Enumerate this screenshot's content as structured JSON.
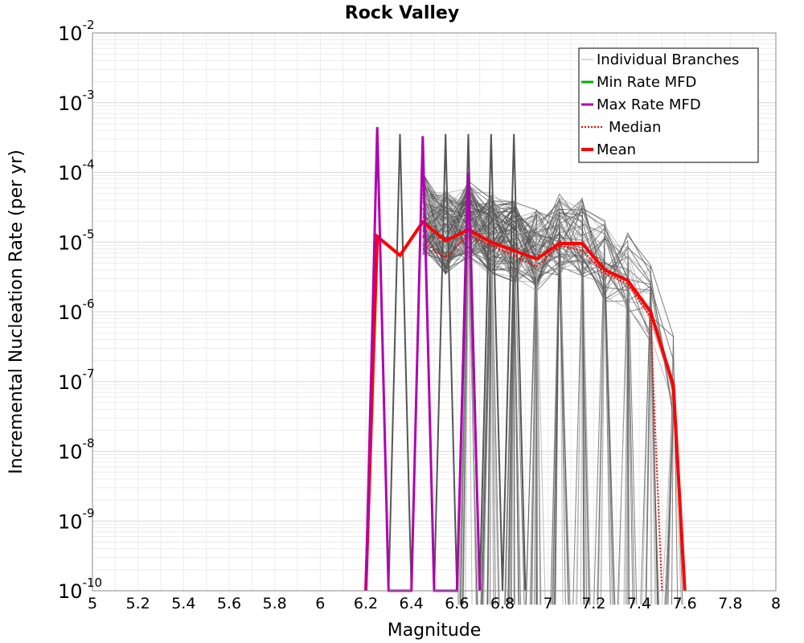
{
  "chart_data": {
    "type": "line",
    "title": "Rock Valley",
    "xlabel": "Magnitude",
    "ylabel": "Incremental Nucleation Rate (per yr)",
    "xlim": [
      5,
      8
    ],
    "ylim_log10": [
      -10,
      -2
    ],
    "y_scale": "log",
    "grid": true,
    "x_ticks": [
      "5",
      "5.2",
      "5.4",
      "5.6",
      "5.8",
      "6",
      "6.2",
      "6.4",
      "6.6",
      "6.8",
      "7",
      "7.2",
      "7.4",
      "7.6",
      "7.8",
      "8"
    ],
    "y_ticks": [
      {
        "base": "10",
        "exp": "-2"
      },
      {
        "base": "10",
        "exp": "-3"
      },
      {
        "base": "10",
        "exp": "-4"
      },
      {
        "base": "10",
        "exp": "-5"
      },
      {
        "base": "10",
        "exp": "-6"
      },
      {
        "base": "10",
        "exp": "-7"
      },
      {
        "base": "10",
        "exp": "-8"
      },
      {
        "base": "10",
        "exp": "-9"
      },
      {
        "base": "10",
        "exp": "-10"
      }
    ],
    "legend_position": "top-right",
    "legend": [
      {
        "label": "Individual Branches",
        "color": "#b0b0b0",
        "style": "thin"
      },
      {
        "label": "Min Rate MFD",
        "color": "#00b000",
        "style": "solid"
      },
      {
        "label": "Max Rate MFD",
        "color": "#b000b0",
        "style": "solid"
      },
      {
        "label": "Median",
        "color": "#ff0000",
        "style": "dotted"
      },
      {
        "label": "Mean",
        "color": "#ff0000",
        "style": "thick"
      }
    ],
    "series": [
      {
        "name": "Mean",
        "color": "#ff0000",
        "x": [
          6.2,
          6.25,
          6.35,
          6.45,
          6.55,
          6.65,
          6.75,
          6.85,
          6.95,
          7.05,
          7.15,
          7.25,
          7.35,
          7.45,
          7.55,
          7.6
        ],
        "log10_y": [
          -10,
          -4.92,
          -5.19,
          -4.71,
          -4.98,
          -4.82,
          -5.0,
          -5.12,
          -5.24,
          -5.02,
          -5.02,
          -5.4,
          -5.55,
          -6.0,
          -7.05,
          -10
        ]
      },
      {
        "name": "Median",
        "color": "#ff0000",
        "x": [
          6.45,
          6.5,
          6.55,
          6.65,
          6.75,
          6.85,
          6.95,
          7.05,
          7.15,
          7.25,
          7.35,
          7.45,
          7.5
        ],
        "log10_y": [
          -4.92,
          -5.12,
          -5.22,
          -4.9,
          -5.05,
          -5.2,
          -5.35,
          -5.05,
          -5.12,
          -5.45,
          -5.6,
          -6.08,
          -10
        ]
      },
      {
        "name": "Max Rate MFD",
        "color": "#b000b0",
        "x": [
          6.2,
          6.25,
          6.3,
          6.4,
          6.45,
          6.5,
          6.6,
          6.65,
          6.7
        ],
        "log10_y": [
          -10,
          -3.35,
          -10,
          -10,
          -3.48,
          -10,
          -10,
          -4.0,
          -10
        ]
      }
    ]
  }
}
